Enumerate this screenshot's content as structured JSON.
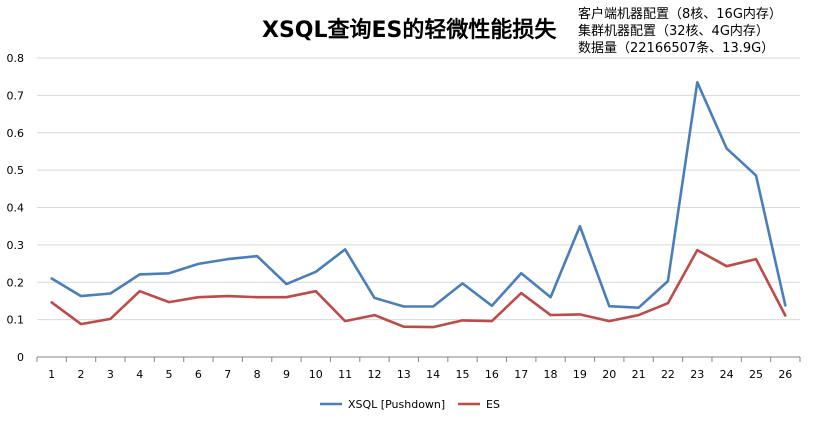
{
  "chart_data": {
    "type": "line",
    "title": "XSQL查询ES的轻微性能损失",
    "annotations": [
      "客户端机器配置（8核、16G内存）",
      "集群机器配置（32核、4G内存）",
      "数据量（22166507条、13.9G）"
    ],
    "categories": [
      "1",
      "2",
      "3",
      "4",
      "5",
      "6",
      "7",
      "8",
      "9",
      "10",
      "11",
      "12",
      "13",
      "14",
      "15",
      "16",
      "17",
      "18",
      "19",
      "20",
      "21",
      "22",
      "23",
      "24",
      "25",
      "26"
    ],
    "y_ticks": [
      "0",
      "0.1",
      "0.2",
      "0.3",
      "0.4",
      "0.5",
      "0.6",
      "0.7",
      "0.8"
    ],
    "ylim": [
      0,
      0.8
    ],
    "grid": true,
    "legend_position": "bottom",
    "series": [
      {
        "name": "XSQL [Pushdown]",
        "color": "#4a7ebb",
        "values": [
          0.21,
          0.163,
          0.17,
          0.221,
          0.224,
          0.249,
          0.262,
          0.27,
          0.195,
          0.228,
          0.288,
          0.158,
          0.135,
          0.135,
          0.197,
          0.137,
          0.224,
          0.16,
          0.35,
          0.136,
          0.132,
          0.203,
          0.735,
          0.558,
          0.486,
          0.138
        ]
      },
      {
        "name": "ES",
        "color": "#be4b48",
        "values": [
          0.146,
          0.088,
          0.102,
          0.176,
          0.147,
          0.16,
          0.163,
          0.16,
          0.16,
          0.176,
          0.096,
          0.112,
          0.081,
          0.08,
          0.098,
          0.096,
          0.171,
          0.112,
          0.114,
          0.096,
          0.112,
          0.144,
          0.286,
          0.243,
          0.262,
          0.111
        ]
      }
    ]
  }
}
